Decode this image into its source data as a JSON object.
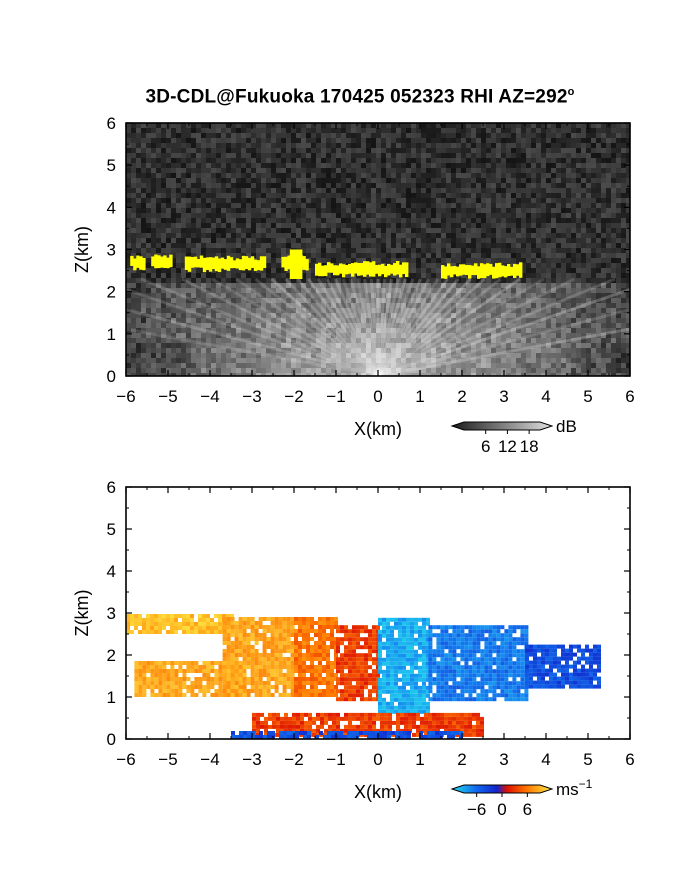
{
  "title": "3D-CDL@Fukuoka 170425 052323 RHI AZ=292",
  "title_degree": "o",
  "colors": {
    "background": "#ffffff",
    "axis": "#000000",
    "snr_gray_dark": "#1b1b1b",
    "snr_gray_light": "#d4d4d4",
    "cloud_yellow": "#ffff00",
    "vel_cyan": "#33ccee",
    "vel_blue": "#1133dd",
    "vel_red": "#ee2200",
    "vel_orange": "#ff8800",
    "vel_yellow": "#ffdd22"
  },
  "chart_data": [
    {
      "type": "heatmap",
      "panel": "snr",
      "xlabel": "X(km)",
      "ylabel": "Z(km)",
      "xlim": [
        -6,
        6
      ],
      "ylim": [
        0,
        6
      ],
      "xticks": [
        "−6",
        "−5",
        "−4",
        "−3",
        "−2",
        "−1",
        "0",
        "1",
        "2",
        "3",
        "4",
        "5",
        "6"
      ],
      "yticks": [
        "0",
        "1",
        "2",
        "3",
        "4",
        "5",
        "6"
      ],
      "colorbar": {
        "unit": "dB",
        "ticks": [
          "6",
          "12",
          "18"
        ],
        "tick_values": [
          6,
          12,
          18
        ],
        "range": [
          0,
          21
        ]
      },
      "cloud_base_segments": [
        {
          "x": [
            -5.9,
            -5.6
          ],
          "z": 2.72
        },
        {
          "x": [
            -5.4,
            -4.9
          ],
          "z": 2.72
        },
        {
          "x": [
            -4.6,
            -2.7
          ],
          "z": 2.68
        },
        {
          "x": [
            -2.3,
            -1.7
          ],
          "z": 2.7
        },
        {
          "x": [
            -1.5,
            0.7
          ],
          "z": 2.55
        },
        {
          "x": [
            1.5,
            3.4
          ],
          "z": 2.52
        }
      ],
      "boundary_layer_top_km": 2.3
    },
    {
      "type": "heatmap",
      "panel": "doppler_velocity",
      "xlabel": "X(km)",
      "ylabel": "Z(km)",
      "xlim": [
        -6,
        6
      ],
      "ylim": [
        0,
        6
      ],
      "xticks": [
        "−6",
        "−5",
        "−4",
        "−3",
        "−2",
        "−1",
        "0",
        "1",
        "2",
        "3",
        "4",
        "5",
        "6"
      ],
      "yticks": [
        "0",
        "1",
        "2",
        "3",
        "4",
        "5",
        "6"
      ],
      "colorbar": {
        "unit": "ms",
        "unit_exp": "−1",
        "ticks": [
          "−6",
          "0",
          "6"
        ],
        "tick_values": [
          -6,
          0,
          6
        ],
        "range": [
          -9,
          9
        ]
      },
      "regions": [
        {
          "x": [
            -6.0,
            -3.5
          ],
          "z": [
            2.5,
            2.9
          ],
          "velocity": 7
        },
        {
          "x": [
            -5.8,
            -3.2
          ],
          "z": [
            1.0,
            1.8
          ],
          "velocity": 6
        },
        {
          "x": [
            -3.7,
            -2.0
          ],
          "z": [
            1.0,
            2.9
          ],
          "velocity": 6
        },
        {
          "x": [
            -2.0,
            -1.0
          ],
          "z": [
            1.0,
            2.9
          ],
          "velocity": 4
        },
        {
          "x": [
            -1.0,
            0.0
          ],
          "z": [
            0.9,
            2.7
          ],
          "velocity": 2
        },
        {
          "x": [
            0.0,
            1.2
          ],
          "z": [
            0.6,
            2.8
          ],
          "velocity": -7
        },
        {
          "x": [
            1.2,
            3.5
          ],
          "z": [
            0.9,
            2.7
          ],
          "velocity": -5
        },
        {
          "x": [
            3.5,
            5.3
          ],
          "z": [
            1.2,
            2.2
          ],
          "velocity": -3
        },
        {
          "x": [
            -3.0,
            2.5
          ],
          "z": [
            0.05,
            0.6
          ],
          "velocity": 2
        },
        {
          "x": [
            -3.5,
            2.0
          ],
          "z": [
            0.0,
            0.15
          ],
          "velocity": -3
        }
      ]
    }
  ]
}
